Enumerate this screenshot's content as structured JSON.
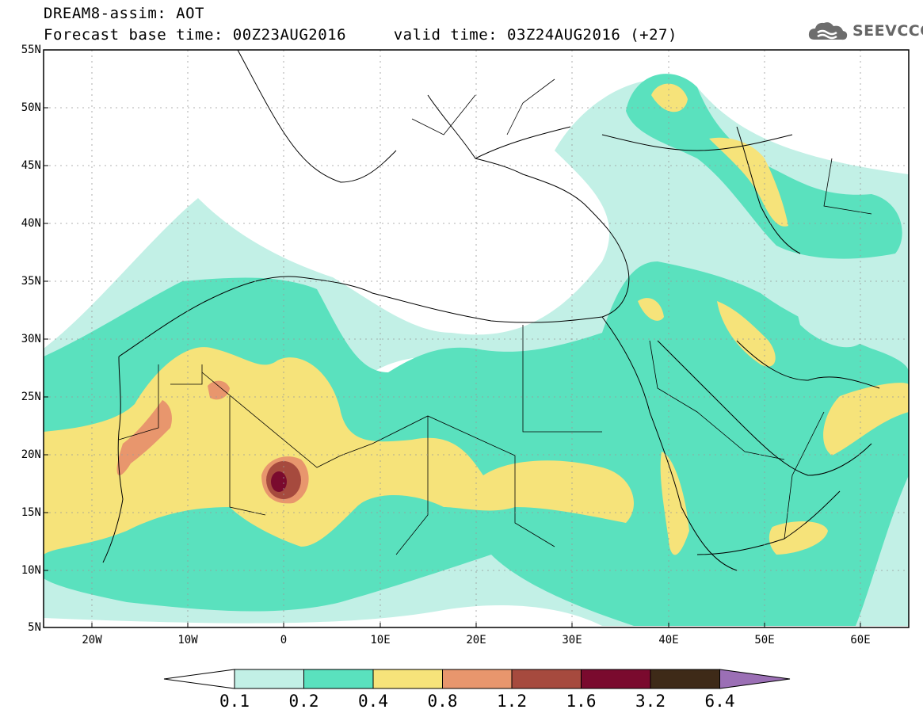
{
  "header": {
    "line1": "DREAM8-assim: AOT",
    "line2": "Forecast base time: 00Z23AUG2016     valid time: 03Z24AUG2016 (+27)",
    "logo_text": "SEEVCCC"
  },
  "map": {
    "variable": "AOT",
    "lon_range": [
      -25,
      65
    ],
    "lat_range": [
      5,
      55
    ],
    "lat_ticks": [
      "5N",
      "10N",
      "15N",
      "20N",
      "25N",
      "30N",
      "35N",
      "40N",
      "45N",
      "50N",
      "55N"
    ],
    "lon_ticks": [
      "20W",
      "10W",
      "0",
      "10E",
      "20E",
      "30E",
      "40E",
      "50E",
      "60E"
    ],
    "grid": "dotted"
  },
  "colorbar": {
    "labels": [
      "0.1",
      "0.2",
      "0.4",
      "0.8",
      "1.2",
      "1.6",
      "3.2",
      "6.4"
    ],
    "colors": {
      "below": "#ffffff",
      "b1": "#c2f0e6",
      "b2": "#5ae1be",
      "b3": "#f6e37a",
      "b4": "#e8966d",
      "b5": "#a64a3e",
      "b6": "#7a0a2e",
      "b7": "#3e2a18",
      "above": "#9b6fb5"
    }
  }
}
